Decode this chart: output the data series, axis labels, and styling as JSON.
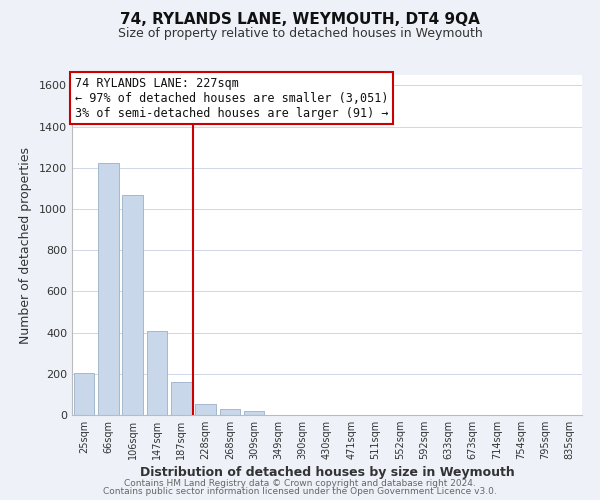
{
  "title": "74, RYLANDS LANE, WEYMOUTH, DT4 9QA",
  "subtitle": "Size of property relative to detached houses in Weymouth",
  "xlabel": "Distribution of detached houses by size in Weymouth",
  "ylabel": "Number of detached properties",
  "bar_labels": [
    "25sqm",
    "66sqm",
    "106sqm",
    "147sqm",
    "187sqm",
    "228sqm",
    "268sqm",
    "309sqm",
    "349sqm",
    "390sqm",
    "430sqm",
    "471sqm",
    "511sqm",
    "552sqm",
    "592sqm",
    "633sqm",
    "673sqm",
    "714sqm",
    "754sqm",
    "795sqm",
    "835sqm"
  ],
  "bar_values": [
    205,
    1225,
    1070,
    410,
    160,
    55,
    30,
    20,
    0,
    0,
    0,
    0,
    0,
    0,
    0,
    0,
    0,
    0,
    0,
    0,
    0
  ],
  "bar_color": "#c8d8ea",
  "bar_edge_color": "#99b0c8",
  "property_line_color": "#cc0000",
  "ylim": [
    0,
    1650
  ],
  "yticks": [
    0,
    200,
    400,
    600,
    800,
    1000,
    1200,
    1400,
    1600
  ],
  "annotation_title": "74 RYLANDS LANE: 227sqm",
  "annotation_line1": "← 97% of detached houses are smaller (3,051)",
  "annotation_line2": "3% of semi-detached houses are larger (91) →",
  "annotation_box_facecolor": "#ffffff",
  "annotation_box_edge": "#cc0000",
  "footer_line1": "Contains HM Land Registry data © Crown copyright and database right 2024.",
  "footer_line2": "Contains public sector information licensed under the Open Government Licence v3.0.",
  "grid_color": "#d0d8e8",
  "plot_bg_color": "#ffffff",
  "fig_bg_color": "#eef2f8"
}
